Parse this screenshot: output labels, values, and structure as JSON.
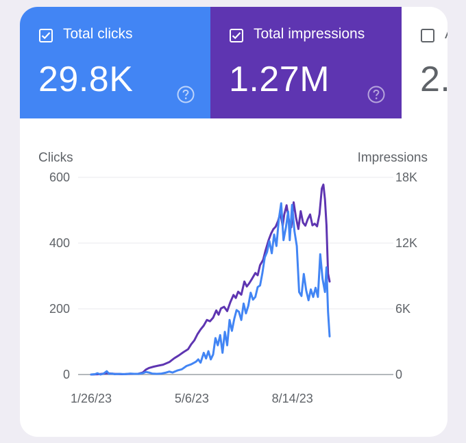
{
  "tiles": {
    "clicks": {
      "label": "Total clicks",
      "value": "29.8K",
      "checked": true,
      "color": "#4285f4"
    },
    "impressions": {
      "label": "Total impressions",
      "value": "1.27M",
      "checked": true,
      "color": "#5e35b1"
    },
    "third": {
      "label": "A",
      "value": "2.",
      "checked": false
    }
  },
  "colors": {
    "clicks": "#4285f4",
    "impressions": "#5e35b1",
    "grid": "#e8eaed",
    "baseline": "#9aa0a6",
    "text": "#5f6368"
  },
  "icons": {
    "help": "help-circle-icon",
    "check": "checkbox-checked-icon",
    "unchecked": "checkbox-unchecked-icon"
  },
  "chart_data": {
    "type": "line",
    "ylabel_left": "Clicks",
    "ylabel_right": "Impressions",
    "ylim_left": [
      0,
      600
    ],
    "ylim_right": [
      0,
      18000
    ],
    "y_ticks_left": [
      "0",
      "200",
      "400",
      "600"
    ],
    "y_ticks_right": [
      "0",
      "6K",
      "12K",
      "18K"
    ],
    "x_ticks": [
      {
        "label": "1/26/23",
        "day": 0
      },
      {
        "label": "5/6/23",
        "day": 100
      },
      {
        "label": "8/14/23",
        "day": 200
      }
    ],
    "x_range_days": [
      0,
      237
    ],
    "grid": true,
    "series": [
      {
        "name": "Clicks",
        "axis": "left",
        "points": [
          [
            0,
            0
          ],
          [
            5,
            1
          ],
          [
            8,
            4
          ],
          [
            12,
            0
          ],
          [
            16,
            3
          ],
          [
            20,
            10
          ],
          [
            23,
            2
          ],
          [
            27,
            3
          ],
          [
            30,
            1
          ],
          [
            36,
            2
          ],
          [
            43,
            1
          ],
          [
            50,
            3
          ],
          [
            55,
            2
          ],
          [
            60,
            2
          ],
          [
            66,
            4
          ],
          [
            70,
            8
          ],
          [
            74,
            6
          ],
          [
            78,
            3
          ],
          [
            84,
            2
          ],
          [
            90,
            3
          ],
          [
            96,
            6
          ],
          [
            100,
            9
          ],
          [
            104,
            6
          ],
          [
            110,
            12
          ],
          [
            116,
            16
          ],
          [
            122,
            26
          ],
          [
            128,
            31
          ],
          [
            134,
            39
          ],
          [
            137,
            46
          ],
          [
            140,
            36
          ],
          [
            144,
            66
          ],
          [
            147,
            49
          ],
          [
            150,
            71
          ],
          [
            153,
            46
          ],
          [
            156,
            61
          ],
          [
            159,
            111
          ],
          [
            162,
            89
          ],
          [
            165,
            120
          ],
          [
            168,
            66
          ],
          [
            171,
            130
          ],
          [
            174,
            89
          ],
          [
            177,
            166
          ],
          [
            180,
            133
          ],
          [
            183,
            169
          ],
          [
            186,
            196
          ],
          [
            189,
            191
          ],
          [
            192,
            166
          ],
          [
            195,
            216
          ],
          [
            198,
            186
          ],
          [
            201,
            209
          ],
          [
            204,
            249
          ],
          [
            207,
            228
          ],
          [
            210,
            236
          ],
          [
            213,
            266
          ],
          [
            216,
            271
          ],
          [
            219,
            309
          ],
          [
            222,
            356
          ],
          [
            225,
            373
          ],
          [
            228,
            406
          ],
          [
            231,
            369
          ],
          [
            234,
            426
          ],
          [
            237,
            391
          ],
          [
            240,
            471
          ],
          [
            243,
            521
          ],
          [
            246,
            409
          ],
          [
            249,
            446
          ],
          [
            252,
            496
          ],
          [
            254,
            409
          ],
          [
            257,
            516
          ],
          [
            260,
            436
          ],
          [
            263,
            391
          ],
          [
            266,
            251
          ],
          [
            269,
            239
          ],
          [
            272,
            306
          ],
          [
            275,
            256
          ],
          [
            278,
            226
          ],
          [
            281,
            259
          ],
          [
            284,
            236
          ],
          [
            287,
            264
          ],
          [
            290,
            236
          ],
          [
            293,
            366
          ],
          [
            296,
            291
          ],
          [
            299,
            251
          ],
          [
            301,
            326
          ],
          [
            303,
            191
          ],
          [
            305,
            116
          ]
        ]
      },
      {
        "name": "Impressions",
        "axis": "right",
        "points": [
          [
            0,
            0
          ],
          [
            10,
            30
          ],
          [
            20,
            120
          ],
          [
            30,
            60
          ],
          [
            40,
            30
          ],
          [
            50,
            60
          ],
          [
            60,
            60
          ],
          [
            66,
            180
          ],
          [
            70,
            450
          ],
          [
            74,
            600
          ],
          [
            80,
            720
          ],
          [
            86,
            810
          ],
          [
            92,
            900
          ],
          [
            100,
            1140
          ],
          [
            106,
            1470
          ],
          [
            112,
            1740
          ],
          [
            118,
            2040
          ],
          [
            124,
            2310
          ],
          [
            128,
            2760
          ],
          [
            132,
            3120
          ],
          [
            136,
            3690
          ],
          [
            140,
            4110
          ],
          [
            144,
            4470
          ],
          [
            148,
            4980
          ],
          [
            152,
            4860
          ],
          [
            156,
            5190
          ],
          [
            160,
            5850
          ],
          [
            163,
            5460
          ],
          [
            166,
            6030
          ],
          [
            170,
            6180
          ],
          [
            174,
            5790
          ],
          [
            178,
            6600
          ],
          [
            182,
            7260
          ],
          [
            185,
            6990
          ],
          [
            188,
            7560
          ],
          [
            192,
            7290
          ],
          [
            196,
            8490
          ],
          [
            199,
            8040
          ],
          [
            202,
            8310
          ],
          [
            206,
            8760
          ],
          [
            210,
            9270
          ],
          [
            213,
            9060
          ],
          [
            216,
            9990
          ],
          [
            220,
            10470
          ],
          [
            223,
            11310
          ],
          [
            227,
            12270
          ],
          [
            230,
            12840
          ],
          [
            233,
            13260
          ],
          [
            236,
            13500
          ],
          [
            239,
            14010
          ],
          [
            242,
            14730
          ],
          [
            245,
            13560
          ],
          [
            247,
            14610
          ],
          [
            250,
            15450
          ],
          [
            253,
            14040
          ],
          [
            256,
            13440
          ],
          [
            259,
            15720
          ],
          [
            262,
            14340
          ],
          [
            265,
            13290
          ],
          [
            268,
            14910
          ],
          [
            271,
            13860
          ],
          [
            274,
            13590
          ],
          [
            277,
            14190
          ],
          [
            280,
            14610
          ],
          [
            283,
            13620
          ],
          [
            286,
            13770
          ],
          [
            289,
            13530
          ],
          [
            292,
            14640
          ],
          [
            295,
            16980
          ],
          [
            297,
            17340
          ],
          [
            299,
            15990
          ],
          [
            301,
            13650
          ],
          [
            303,
            9210
          ],
          [
            305,
            8490
          ]
        ]
      }
    ]
  }
}
